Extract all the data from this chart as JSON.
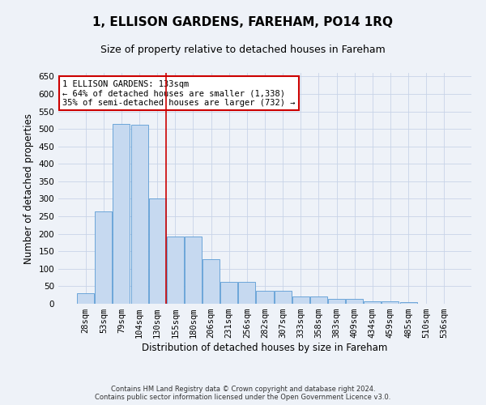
{
  "title": "1, ELLISON GARDENS, FAREHAM, PO14 1RQ",
  "subtitle": "Size of property relative to detached houses in Fareham",
  "xlabel": "Distribution of detached houses by size in Fareham",
  "ylabel": "Number of detached properties",
  "categories": [
    "28sqm",
    "53sqm",
    "79sqm",
    "104sqm",
    "130sqm",
    "155sqm",
    "180sqm",
    "206sqm",
    "231sqm",
    "256sqm",
    "282sqm",
    "307sqm",
    "333sqm",
    "358sqm",
    "383sqm",
    "409sqm",
    "434sqm",
    "459sqm",
    "485sqm",
    "510sqm",
    "536sqm"
  ],
  "values": [
    30,
    263,
    513,
    511,
    302,
    193,
    193,
    128,
    62,
    62,
    37,
    37,
    20,
    20,
    14,
    14,
    8,
    8,
    4,
    1,
    1
  ],
  "bar_color": "#c6d9f0",
  "bar_edge_color": "#5b9bd5",
  "grid_color": "#c8d4e8",
  "vline_x_index": 4,
  "vline_color": "#cc0000",
  "annotation_line1": "1 ELLISON GARDENS: 133sqm",
  "annotation_line2": "← 64% of detached houses are smaller (1,338)",
  "annotation_line3": "35% of semi-detached houses are larger (732) →",
  "annotation_box_color": "#ffffff",
  "annotation_box_edge": "#cc0000",
  "ylim": [
    0,
    660
  ],
  "yticks": [
    0,
    50,
    100,
    150,
    200,
    250,
    300,
    350,
    400,
    450,
    500,
    550,
    600,
    650
  ],
  "footer_line1": "Contains HM Land Registry data © Crown copyright and database right 2024.",
  "footer_line2": "Contains public sector information licensed under the Open Government Licence v3.0.",
  "background_color": "#eef2f8",
  "title_fontsize": 11,
  "subtitle_fontsize": 9,
  "axis_label_fontsize": 8.5,
  "tick_fontsize": 7.5,
  "annotation_fontsize": 7.5,
  "footer_fontsize": 6
}
